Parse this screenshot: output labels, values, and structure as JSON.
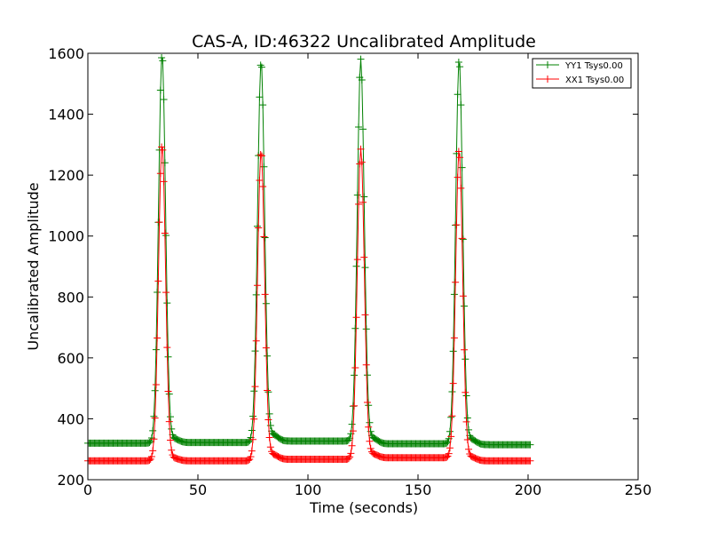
{
  "chart_data": {
    "type": "line",
    "title": "CAS-A, ID:46322 Uncalibrated Amplitude",
    "xlabel": "Time (seconds)",
    "ylabel": "Uncalibrated Amplitude",
    "xlim": [
      0,
      250
    ],
    "ylim": [
      200,
      1600
    ],
    "xticks": [
      "0",
      "50",
      "100",
      "150",
      "200",
      "250"
    ],
    "yticks": [
      "200",
      "400",
      "600",
      "800",
      "1000",
      "1200",
      "1400",
      "1600"
    ],
    "grid": false,
    "legend_position": "top-right",
    "marker": "+",
    "peak_centers": [
      33.7,
      78.7,
      124.0,
      168.7
    ],
    "sample_step": 0.5,
    "x_range": [
      0,
      201
    ],
    "series": [
      {
        "name": "YY1 Tsys0.00",
        "color": "#008000",
        "baselines": [
          320,
          322,
          327,
          318,
          315
        ],
        "bumps_after_peaks": [
          12,
          20,
          18,
          17
        ],
        "peaks": [
          1595,
          1570,
          1580,
          1580
        ],
        "peak_width": 1.6
      },
      {
        "name": "XX1 Tsys0.00",
        "color": "#ff0000",
        "baselines": [
          262,
          262,
          267,
          272,
          262
        ],
        "bumps_after_peaks": [
          8,
          15,
          12,
          12
        ],
        "peaks": [
          1300,
          1275,
          1285,
          1285
        ],
        "peak_width": 1.6
      }
    ]
  }
}
